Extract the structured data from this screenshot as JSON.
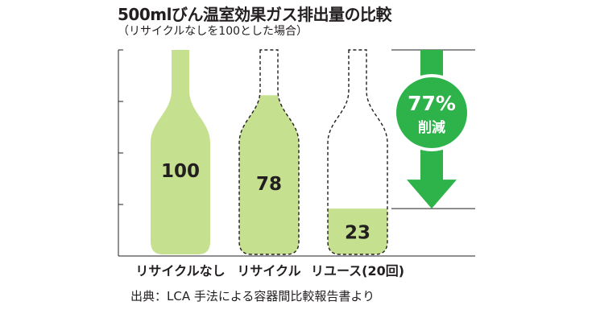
{
  "title": "500mlびん温室効果ガス排出量の比較",
  "subtitle": "（リサイクルなしを100とした場合）",
  "source": "出典：LCA 手法による容器間比較報告書より",
  "badge": {
    "value": "77%",
    "label": "削減"
  },
  "colors": {
    "fill": "#c5e08f",
    "arrow": "#2db34a",
    "axis": "#231f20"
  },
  "chart_data": {
    "type": "bar",
    "categories": [
      "リサイクルなし",
      "リサイクル",
      "リユース(20回)"
    ],
    "values": [
      100,
      78,
      23
    ],
    "value_labels": [
      "100",
      "78",
      "23"
    ],
    "ylim": [
      0,
      100
    ],
    "grid": false,
    "marks": "bottle-shaped bars"
  }
}
